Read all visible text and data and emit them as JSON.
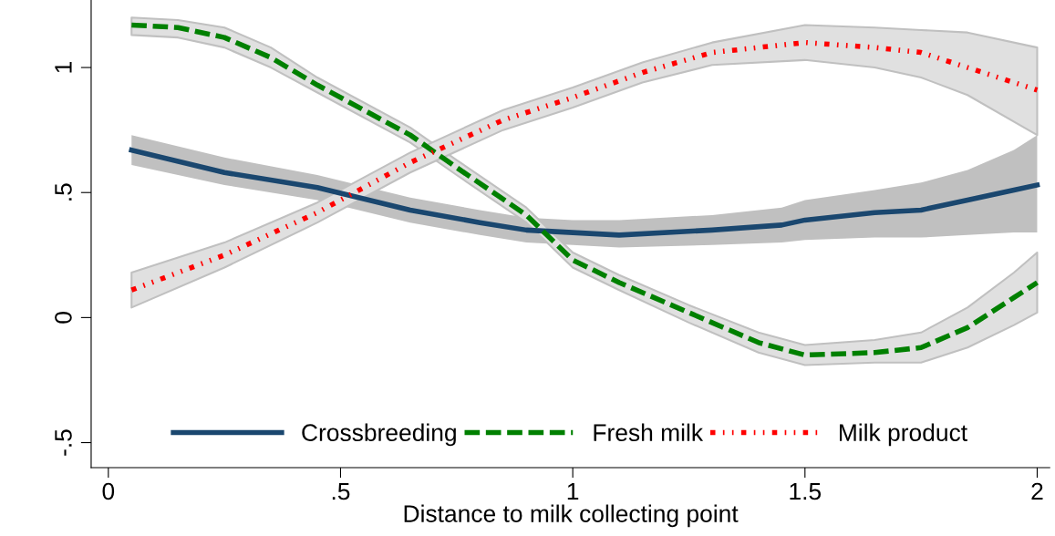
{
  "chart_data": {
    "type": "line",
    "xlabel": "Distance to milk collecting point",
    "xlim": [
      -0.037,
      2.027
    ],
    "ylim": [
      -0.6,
      1.27
    ],
    "xticks": [
      0,
      {
        "value": 0.5,
        "label": ".5"
      },
      1,
      1.5,
      2
    ],
    "yticks": [
      {
        "value": -0.5,
        "label": "-.5"
      },
      0,
      {
        "value": 0.5,
        "label": ".5"
      },
      1
    ],
    "grid": false,
    "legend": "bottom",
    "marker": "none",
    "series": [
      {
        "name": "Crossbreeding",
        "color": "#1a476f",
        "line_style": "solid",
        "x": [
          0.05,
          0.25,
          0.45,
          0.65,
          0.8,
          0.9,
          1.0,
          1.1,
          1.3,
          1.45,
          1.5,
          1.65,
          1.75,
          1.85,
          1.95,
          2.0
        ],
        "values": [
          0.67,
          0.58,
          0.52,
          0.43,
          0.38,
          0.35,
          0.34,
          0.33,
          0.35,
          0.37,
          0.39,
          0.42,
          0.43,
          0.47,
          0.51,
          0.53
        ],
        "lower": [
          0.61,
          0.53,
          0.47,
          0.38,
          0.33,
          0.3,
          0.29,
          0.28,
          0.29,
          0.3,
          0.31,
          0.32,
          0.32,
          0.33,
          0.34,
          0.34
        ],
        "upper": [
          0.73,
          0.64,
          0.57,
          0.48,
          0.43,
          0.4,
          0.39,
          0.39,
          0.41,
          0.44,
          0.47,
          0.51,
          0.54,
          0.59,
          0.67,
          0.73
        ]
      },
      {
        "name": "Fresh milk",
        "color": "#008000",
        "line_style": "dashed",
        "x": [
          0.05,
          0.15,
          0.25,
          0.35,
          0.45,
          0.65,
          0.75,
          0.9,
          1.0,
          1.1,
          1.25,
          1.4,
          1.5,
          1.65,
          1.75,
          1.85,
          1.95,
          2.0
        ],
        "values": [
          1.17,
          1.16,
          1.12,
          1.04,
          0.93,
          0.73,
          0.6,
          0.41,
          0.23,
          0.14,
          0.02,
          -0.1,
          -0.15,
          -0.14,
          -0.12,
          -0.04,
          0.08,
          0.14
        ],
        "lower": [
          1.13,
          1.12,
          1.08,
          1.0,
          0.9,
          0.7,
          0.57,
          0.38,
          0.2,
          0.11,
          -0.02,
          -0.14,
          -0.19,
          -0.18,
          -0.18,
          -0.12,
          -0.03,
          0.02
        ],
        "upper": [
          1.2,
          1.19,
          1.16,
          1.08,
          0.96,
          0.76,
          0.63,
          0.44,
          0.26,
          0.17,
          0.05,
          -0.06,
          -0.11,
          -0.09,
          -0.06,
          0.04,
          0.18,
          0.26
        ]
      },
      {
        "name": "Milk product",
        "color": "#ff0000",
        "line_style": "dotted",
        "x": [
          0.05,
          0.25,
          0.45,
          0.65,
          0.85,
          1.0,
          1.15,
          1.3,
          1.5,
          1.65,
          1.75,
          1.85,
          2.0
        ],
        "values": [
          0.11,
          0.25,
          0.42,
          0.62,
          0.79,
          0.88,
          0.98,
          1.06,
          1.1,
          1.08,
          1.06,
          1.0,
          0.91
        ],
        "lower": [
          0.04,
          0.2,
          0.38,
          0.58,
          0.75,
          0.84,
          0.94,
          1.01,
          1.03,
          1.0,
          0.96,
          0.89,
          0.73
        ],
        "upper": [
          0.18,
          0.3,
          0.46,
          0.66,
          0.83,
          0.92,
          1.02,
          1.1,
          1.17,
          1.16,
          1.15,
          1.14,
          1.08
        ]
      }
    ]
  }
}
